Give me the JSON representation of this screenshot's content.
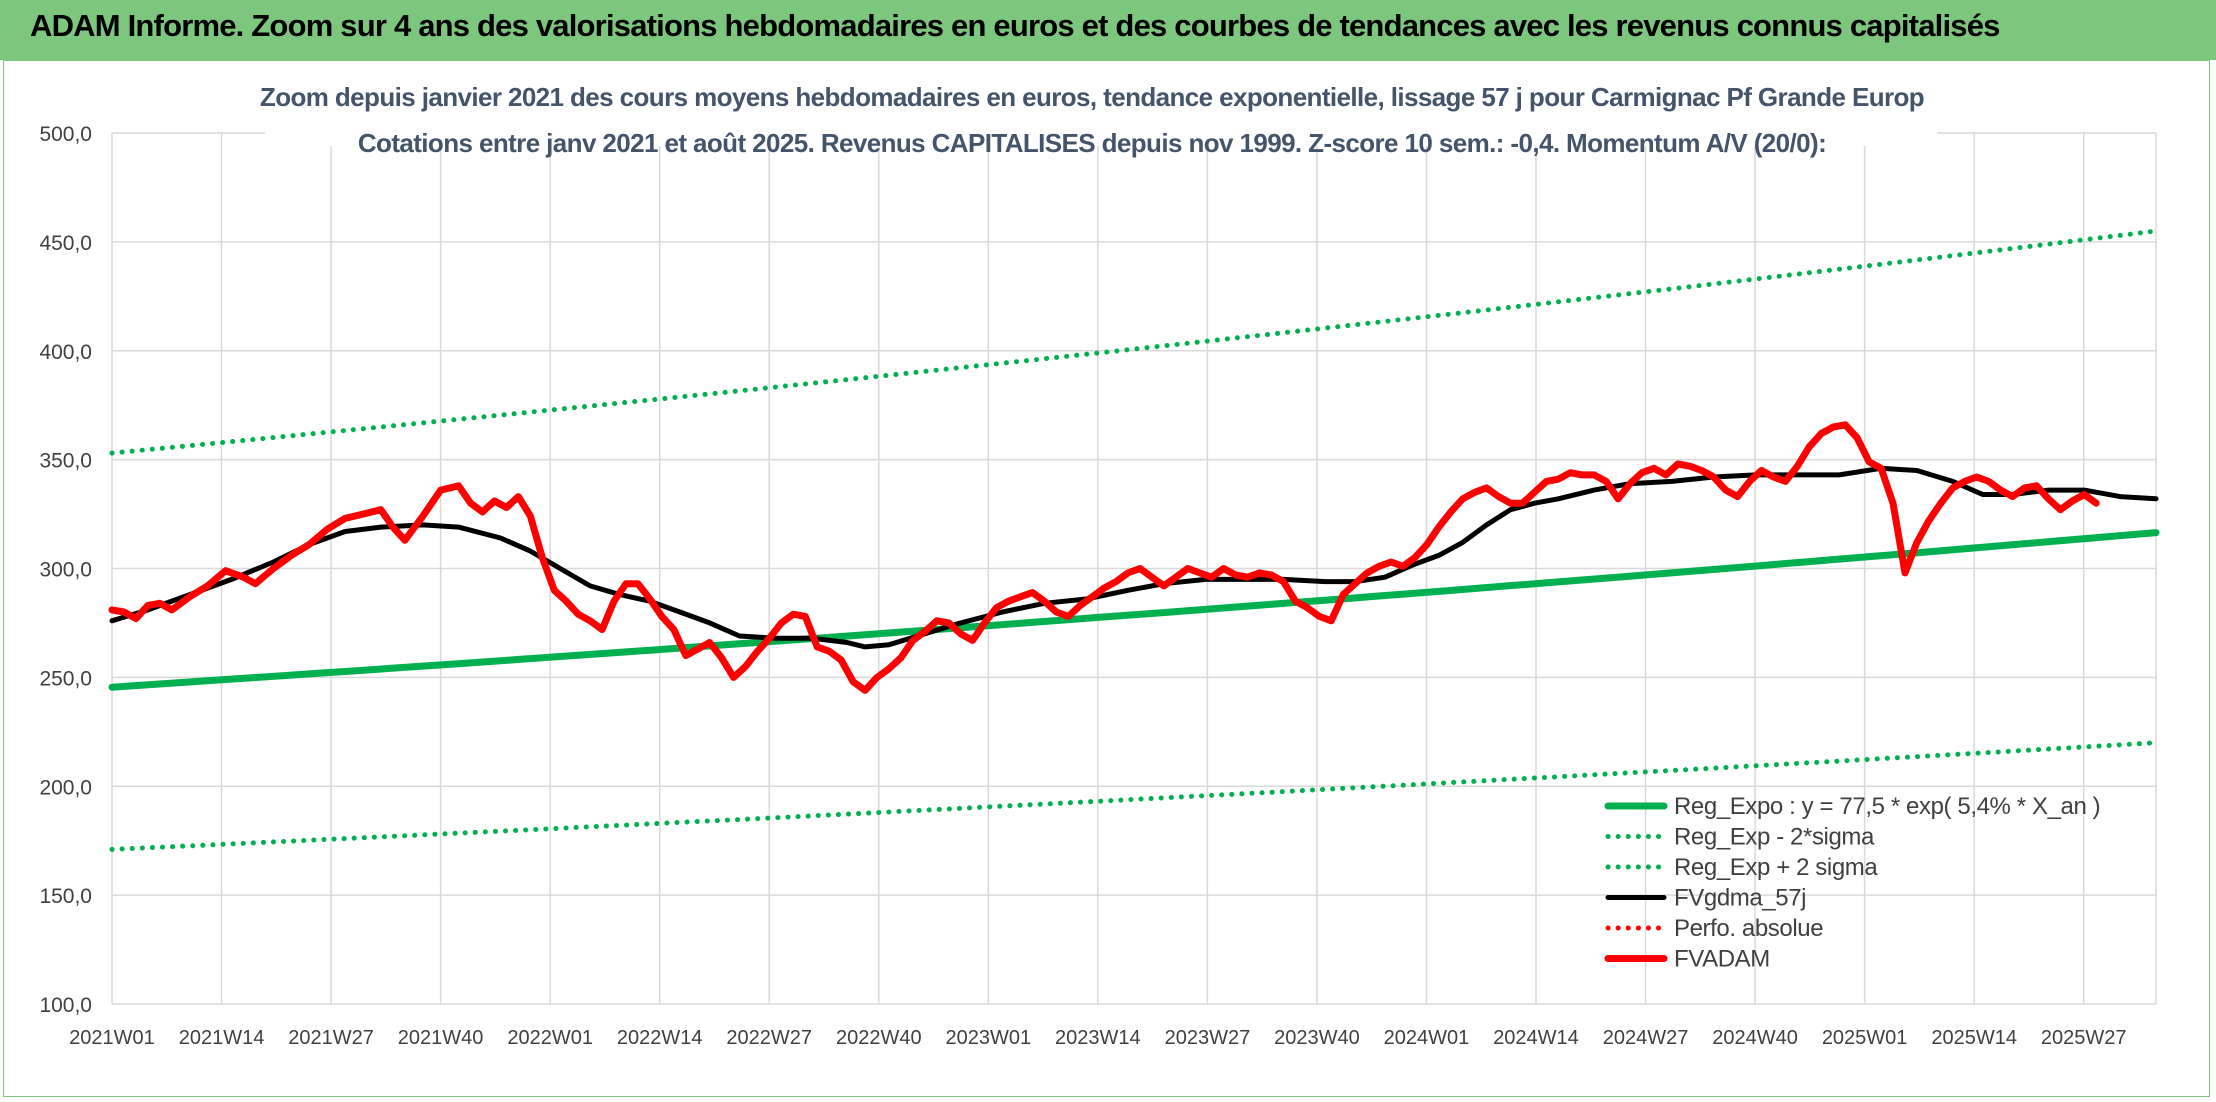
{
  "banner": {
    "title": "ADAM Informe. Zoom sur 4 ans des valorisations hebdomadaires en euros et des courbes de tendances avec les revenus connus capitalisés"
  },
  "chart_data": {
    "type": "line",
    "title": "Zoom depuis janvier 2021 des cours moyens hebdomadaires en euros, tendance exponentielle, lissage 57 j pour Carmignac Pf Grande Europ",
    "subtitle": "Cotations entre janv 2021 et août 2025. Revenus CAPITALISES depuis nov 1999. Z-score 10 sem.: -0,4. Momentum A/V (20/0):",
    "xlabel": "",
    "ylabel": "",
    "ylim": [
      100,
      500
    ],
    "y_ticks": [
      "100,0",
      "150,0",
      "200,0",
      "250,0",
      "300,0",
      "350,0",
      "400,0",
      "450,0",
      "500,0"
    ],
    "x_ticks": [
      "2021W01",
      "2021W14",
      "2021W27",
      "2021W40",
      "2022W01",
      "2022W14",
      "2022W27",
      "2022W40",
      "2023W01",
      "2023W14",
      "2023W27",
      "2023W40",
      "2024W01",
      "2024W14",
      "2024W27",
      "2024W40",
      "2025W01",
      "2025W14",
      "2025W27"
    ],
    "grid": true,
    "legend_position": "bottom-right",
    "series": [
      {
        "name": "Reg_Expo : y = 77,5 * exp( 5,4% *  X_an )",
        "color": "#00b050",
        "style": "solid-thick",
        "start": [
          0,
          245.5
        ],
        "end": [
          242,
          316.5
        ]
      },
      {
        "name": "Reg_Exp - 2*sigma",
        "color": "#00b050",
        "style": "dotted",
        "start": [
          0,
          171
        ],
        "end": [
          242,
          220
        ]
      },
      {
        "name": "Reg_Exp + 2 sigma",
        "color": "#00b050",
        "style": "dotted",
        "start": [
          0,
          353
        ],
        "end": [
          242,
          455
        ]
      },
      {
        "name": "FVgdma_57j",
        "color": "#000000",
        "style": "solid",
        "points": [
          [
            0,
            276
          ],
          [
            6,
            281
          ],
          [
            13,
            288
          ],
          [
            20,
            295
          ],
          [
            27,
            303
          ],
          [
            33,
            311
          ],
          [
            39,
            317
          ],
          [
            45,
            319
          ],
          [
            52,
            320
          ],
          [
            58,
            319
          ],
          [
            65,
            314
          ],
          [
            70,
            308
          ],
          [
            75,
            300
          ],
          [
            80,
            292
          ],
          [
            85,
            288
          ],
          [
            90,
            285
          ],
          [
            95,
            280
          ],
          [
            100,
            275
          ],
          [
            105,
            269
          ],
          [
            111,
            268
          ],
          [
            117,
            268
          ],
          [
            123,
            266
          ],
          [
            126,
            264
          ],
          [
            130,
            265
          ],
          [
            136,
            270
          ],
          [
            142,
            275
          ],
          [
            149,
            280
          ],
          [
            156,
            284
          ],
          [
            163,
            286
          ],
          [
            170,
            290
          ],
          [
            176,
            293
          ],
          [
            183,
            295
          ],
          [
            190,
            295
          ],
          [
            196,
            295
          ],
          [
            203,
            294
          ],
          [
            208,
            294
          ],
          [
            213,
            296
          ],
          [
            218,
            302
          ],
          [
            222,
            306
          ],
          [
            226,
            312
          ],
          [
            230,
            320
          ],
          [
            234,
            327
          ],
          [
            238,
            330
          ],
          [
            242,
            332
          ],
          [
            248,
            336
          ],
          [
            254,
            339
          ],
          [
            261,
            340
          ],
          [
            268,
            342
          ],
          [
            275,
            343
          ],
          [
            282,
            343
          ],
          [
            289,
            343
          ],
          [
            296,
            346
          ],
          [
            302,
            345
          ],
          [
            308,
            340
          ],
          [
            313,
            334
          ],
          [
            318,
            334
          ],
          [
            324,
            336
          ],
          [
            330,
            336
          ],
          [
            336,
            333
          ],
          [
            342,
            332
          ]
        ]
      },
      {
        "name": "Perfo. absolue",
        "color": "#ff0000",
        "style": "dotted",
        "points": []
      },
      {
        "name": "FVADAM",
        "color": "#ff0000",
        "style": "solid-thick",
        "points": [
          [
            0,
            281
          ],
          [
            2,
            280
          ],
          [
            4,
            277
          ],
          [
            6,
            283
          ],
          [
            8,
            284
          ],
          [
            10,
            281
          ],
          [
            13,
            287
          ],
          [
            16,
            292
          ],
          [
            19,
            299
          ],
          [
            22,
            296
          ],
          [
            24,
            293
          ],
          [
            27,
            300
          ],
          [
            30,
            306
          ],
          [
            33,
            311
          ],
          [
            36,
            318
          ],
          [
            39,
            323
          ],
          [
            42,
            325
          ],
          [
            45,
            327
          ],
          [
            47,
            319
          ],
          [
            49,
            313
          ],
          [
            52,
            324
          ],
          [
            55,
            336
          ],
          [
            58,
            338
          ],
          [
            60,
            330
          ],
          [
            62,
            326
          ],
          [
            64,
            331
          ],
          [
            66,
            328
          ],
          [
            68,
            333
          ],
          [
            70,
            324
          ],
          [
            72,
            305
          ],
          [
            74,
            290
          ],
          [
            76,
            285
          ],
          [
            78,
            279
          ],
          [
            80,
            276
          ],
          [
            82,
            272
          ],
          [
            84,
            285
          ],
          [
            86,
            293
          ],
          [
            88,
            293
          ],
          [
            90,
            286
          ],
          [
            92,
            278
          ],
          [
            94,
            272
          ],
          [
            96,
            260
          ],
          [
            98,
            263
          ],
          [
            100,
            266
          ],
          [
            102,
            259
          ],
          [
            104,
            250
          ],
          [
            106,
            255
          ],
          [
            108,
            262
          ],
          [
            110,
            268
          ],
          [
            112,
            275
          ],
          [
            114,
            279
          ],
          [
            116,
            278
          ],
          [
            118,
            264
          ],
          [
            120,
            262
          ],
          [
            122,
            258
          ],
          [
            124,
            248
          ],
          [
            126,
            244
          ],
          [
            128,
            250
          ],
          [
            130,
            254
          ],
          [
            132,
            259
          ],
          [
            134,
            267
          ],
          [
            136,
            271
          ],
          [
            138,
            276
          ],
          [
            140,
            275
          ],
          [
            142,
            270
          ],
          [
            144,
            267
          ],
          [
            146,
            275
          ],
          [
            148,
            282
          ],
          [
            150,
            285
          ],
          [
            152,
            287
          ],
          [
            154,
            289
          ],
          [
            156,
            285
          ],
          [
            158,
            280
          ],
          [
            160,
            278
          ],
          [
            162,
            283
          ],
          [
            164,
            287
          ],
          [
            166,
            291
          ],
          [
            168,
            294
          ],
          [
            170,
            298
          ],
          [
            172,
            300
          ],
          [
            174,
            296
          ],
          [
            176,
            292
          ],
          [
            178,
            296
          ],
          [
            180,
            300
          ],
          [
            182,
            298
          ],
          [
            184,
            296
          ],
          [
            186,
            300
          ],
          [
            188,
            297
          ],
          [
            190,
            296
          ],
          [
            192,
            298
          ],
          [
            194,
            297
          ],
          [
            196,
            294
          ],
          [
            198,
            285
          ],
          [
            200,
            282
          ],
          [
            202,
            278
          ],
          [
            204,
            276
          ],
          [
            206,
            288
          ],
          [
            208,
            293
          ],
          [
            210,
            298
          ],
          [
            212,
            301
          ],
          [
            214,
            303
          ],
          [
            216,
            301
          ],
          [
            218,
            305
          ],
          [
            220,
            311
          ],
          [
            222,
            319
          ],
          [
            224,
            326
          ],
          [
            226,
            332
          ],
          [
            228,
            335
          ],
          [
            230,
            337
          ],
          [
            232,
            333
          ],
          [
            234,
            330
          ],
          [
            236,
            330
          ],
          [
            238,
            335
          ],
          [
            240,
            340
          ],
          [
            242,
            341
          ],
          [
            244,
            344
          ],
          [
            246,
            343
          ],
          [
            248,
            343
          ],
          [
            250,
            340
          ],
          [
            252,
            332
          ],
          [
            254,
            339
          ],
          [
            256,
            344
          ],
          [
            258,
            346
          ],
          [
            260,
            343
          ],
          [
            262,
            348
          ],
          [
            264,
            347
          ],
          [
            266,
            345
          ],
          [
            268,
            342
          ],
          [
            270,
            336
          ],
          [
            272,
            333
          ],
          [
            274,
            340
          ],
          [
            276,
            345
          ],
          [
            278,
            342
          ],
          [
            280,
            340
          ],
          [
            282,
            347
          ],
          [
            284,
            356
          ],
          [
            286,
            362
          ],
          [
            288,
            365
          ],
          [
            290,
            366
          ],
          [
            292,
            360
          ],
          [
            294,
            349
          ],
          [
            296,
            346
          ],
          [
            298,
            330
          ],
          [
            300,
            298
          ],
          [
            302,
            312
          ],
          [
            304,
            322
          ],
          [
            306,
            330
          ],
          [
            308,
            337
          ],
          [
            310,
            340
          ],
          [
            312,
            342
          ],
          [
            314,
            340
          ],
          [
            316,
            336
          ],
          [
            318,
            333
          ],
          [
            320,
            337
          ],
          [
            322,
            338
          ],
          [
            324,
            332
          ],
          [
            326,
            327
          ],
          [
            328,
            331
          ],
          [
            330,
            334
          ],
          [
            332,
            330
          ]
        ]
      }
    ]
  }
}
